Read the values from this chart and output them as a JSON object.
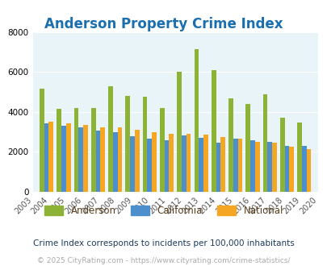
{
  "title": "Anderson Property Crime Index",
  "years": [
    2004,
    2005,
    2006,
    2007,
    2008,
    2009,
    2010,
    2011,
    2012,
    2013,
    2014,
    2015,
    2016,
    2017,
    2018,
    2019
  ],
  "anderson": [
    5150,
    4130,
    4180,
    4180,
    5280,
    4780,
    4760,
    4180,
    6020,
    7130,
    6080,
    4670,
    4390,
    4870,
    3700,
    3450
  ],
  "california": [
    3430,
    3280,
    3230,
    3060,
    2990,
    2760,
    2650,
    2570,
    2800,
    2690,
    2440,
    2640,
    2580,
    2480,
    2300,
    2270
  ],
  "national": [
    3490,
    3400,
    3320,
    3230,
    3200,
    3090,
    2970,
    2910,
    2890,
    2850,
    2740,
    2640,
    2490,
    2460,
    2260,
    2110
  ],
  "anderson_color": "#8db336",
  "california_color": "#4d8fcc",
  "national_color": "#f5a623",
  "bg_color": "#e8f4f8",
  "title_color": "#1a6faf",
  "ylim": [
    0,
    8000
  ],
  "yticks": [
    0,
    2000,
    4000,
    6000,
    8000
  ],
  "footnote1": "Crime Index corresponds to incidents per 100,000 inhabitants",
  "footnote2": "© 2025 CityRating.com - https://www.cityrating.com/crime-statistics/",
  "legend_labels": [
    "Anderson",
    "California",
    "National"
  ],
  "all_years": [
    2003,
    2004,
    2005,
    2006,
    2007,
    2008,
    2009,
    2010,
    2011,
    2012,
    2013,
    2014,
    2015,
    2016,
    2017,
    2018,
    2019,
    2020
  ],
  "bar_width": 0.27
}
